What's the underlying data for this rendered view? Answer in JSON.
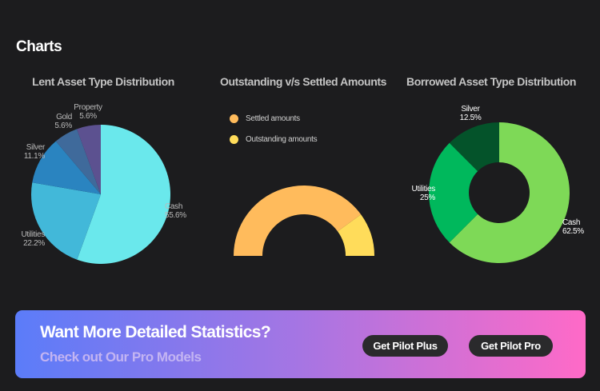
{
  "section": {
    "title": "Charts"
  },
  "chart_data": [
    {
      "type": "pie",
      "title": "Lent Asset Type Distribution",
      "slices": [
        {
          "label": "Cash",
          "value": 55.6,
          "display": "55.6%",
          "color": "#6ae8ec"
        },
        {
          "label": "Utilities",
          "value": 22.2,
          "display": "22.2%",
          "color": "#42b8d9"
        },
        {
          "label": "Silver",
          "value": 11.1,
          "display": "11.1%",
          "color": "#2a84c0"
        },
        {
          "label": "Gold",
          "value": 5.6,
          "display": "5.6%",
          "color": "#3f6a9b"
        },
        {
          "label": "Property",
          "value": 5.6,
          "display": "5.6%",
          "color": "#5c5190"
        }
      ]
    },
    {
      "type": "pie",
      "subtype": "half-donut",
      "title": "Outstanding v/s Settled Amounts",
      "legend_position": "top-left",
      "series": [
        {
          "name": "Settled amounts",
          "value": 80,
          "color": "#ffbb5c"
        },
        {
          "name": "Outstanding amounts",
          "value": 20,
          "color": "#ffdc5a"
        }
      ]
    },
    {
      "type": "pie",
      "subtype": "donut",
      "title": "Borrowed Asset Type Distribution",
      "slices": [
        {
          "label": "Cash",
          "value": 62.5,
          "display": "62.5%",
          "color": "#7ed957"
        },
        {
          "label": "Utilities",
          "value": 25,
          "display": "25%",
          "color": "#00b85c"
        },
        {
          "label": "Silver",
          "value": 12.5,
          "display": "12.5%",
          "color": "#04532a"
        }
      ]
    }
  ],
  "banner": {
    "title": "Want More Detailed Statistics?",
    "subtitle": "Check out Our Pro Models",
    "buttons": {
      "plus": "Get Pilot Plus",
      "pro": "Get Pilot Pro"
    }
  }
}
